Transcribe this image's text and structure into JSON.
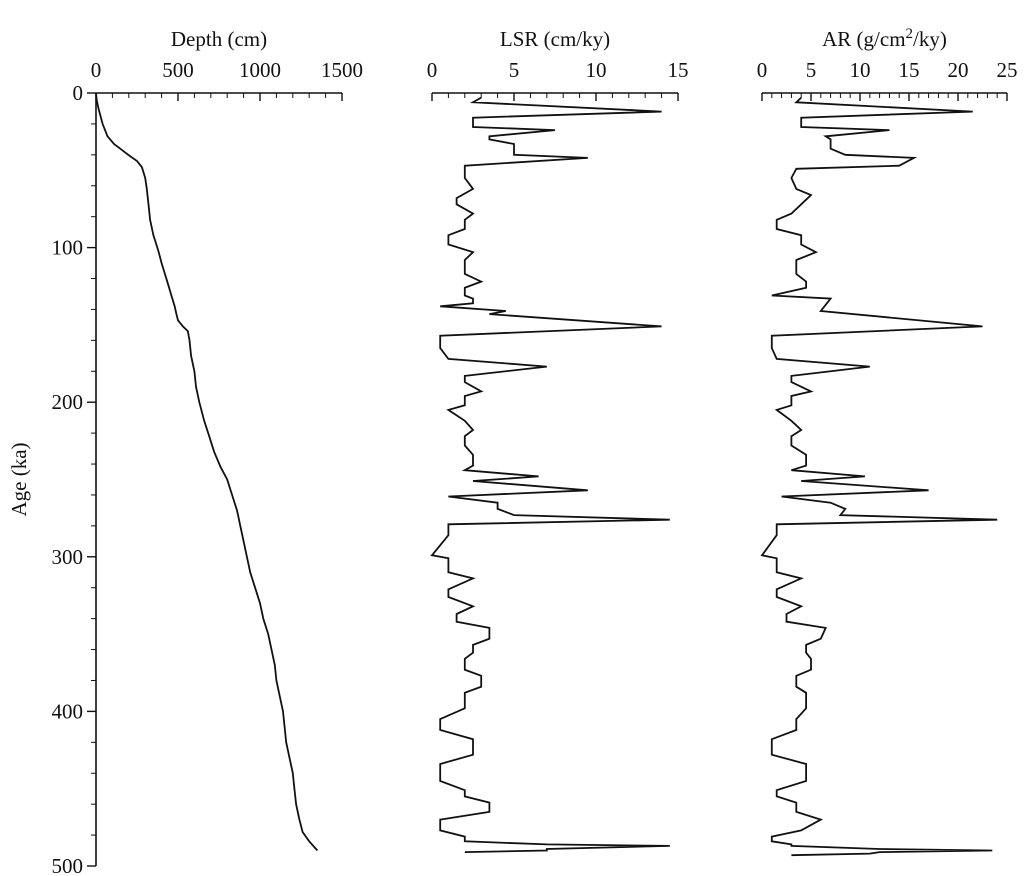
{
  "chart_data": [
    {
      "type": "line",
      "orientation": "vertical-depth-profile",
      "xlabel": "Depth (cm)",
      "ylabel": "Age (ka)",
      "xlim": [
        0,
        1500
      ],
      "ylim": [
        0,
        500
      ],
      "xticks": [
        "0",
        "500",
        "1000",
        "1500"
      ],
      "yticks": [
        "0",
        "100",
        "200",
        "300",
        "400",
        "500"
      ],
      "series": [
        {
          "x": [
            0,
            5,
            15,
            40,
            70,
            110,
            160,
            210,
            250,
            280,
            300,
            310,
            320,
            330,
            350,
            380,
            400,
            420,
            440,
            460,
            480,
            490,
            500,
            530,
            560,
            570,
            580,
            600,
            610,
            630,
            660,
            690,
            720,
            760,
            800,
            830,
            860,
            870,
            880,
            900,
            920,
            940,
            970,
            1000,
            1020,
            1050,
            1070,
            1090,
            1100,
            1120,
            1140,
            1150,
            1160,
            1180,
            1200,
            1210,
            1220,
            1240,
            1260,
            1300,
            1350
          ],
          "y": [
            0,
            5,
            10,
            20,
            28,
            33,
            37,
            41,
            44,
            48,
            55,
            62,
            72,
            82,
            92,
            102,
            110,
            117,
            124,
            131,
            138,
            143,
            147,
            151,
            154,
            160,
            170,
            180,
            190,
            200,
            212,
            222,
            232,
            242,
            250,
            260,
            270,
            275,
            280,
            290,
            300,
            310,
            320,
            330,
            340,
            350,
            360,
            370,
            380,
            390,
            400,
            410,
            420,
            430,
            440,
            450,
            460,
            470,
            478,
            484,
            490
          ]
        }
      ]
    },
    {
      "type": "line",
      "orientation": "vertical-step-profile",
      "xlabel": "LSR (cm/ky)",
      "xlim": [
        0,
        15
      ],
      "xticks": [
        "0",
        "5",
        "10",
        "15"
      ],
      "ylim": [
        0,
        500
      ],
      "series": [
        {
          "x": [
            3.0,
            2.5,
            14.0,
            2.5,
            2.5,
            7.5,
            3.5,
            3.5,
            5.0,
            5.0,
            9.5,
            2.0,
            2.0,
            2.5,
            1.5,
            1.5,
            2.5,
            2.0,
            2.0,
            1.0,
            1.0,
            2.5,
            2.0,
            2.0,
            3.0,
            2.0,
            2.0,
            2.5,
            2.5,
            0.5,
            4.5,
            3.5,
            14.0,
            0.5,
            0.5,
            1.0,
            7.0,
            2.0,
            2.0,
            3.0,
            2.0,
            2.0,
            1.0,
            2.0,
            2.5,
            2.0,
            2.0,
            2.5,
            2.5,
            2.0,
            6.5,
            2.5,
            9.5,
            1.0,
            4.0,
            4.0,
            5.0,
            14.5,
            1.0,
            1.0,
            0.0,
            1.0,
            1.0,
            2.5,
            1.0,
            1.0,
            2.5,
            1.5,
            1.5,
            3.5,
            3.5,
            2.5,
            2.5,
            2.0,
            2.0,
            3.0,
            3.0,
            2.0,
            2.0,
            0.5,
            0.5,
            2.5,
            2.5,
            0.5,
            0.5,
            2.0,
            2.0,
            3.5,
            3.5,
            0.5,
            0.5,
            2.0,
            2.0,
            7.0,
            14.5,
            7.0,
            7.0,
            2.0
          ],
          "y": [
            3,
            6,
            12,
            16,
            22,
            24,
            28,
            30,
            33,
            40,
            42,
            47,
            55,
            62,
            68,
            72,
            78,
            82,
            88,
            92,
            98,
            103,
            108,
            117,
            122,
            126,
            131,
            133,
            136,
            138,
            141,
            143,
            151,
            157,
            165,
            172,
            177,
            183,
            187,
            193,
            196,
            202,
            205,
            212,
            218,
            222,
            228,
            234,
            241,
            244,
            248,
            251,
            257,
            261,
            265,
            269,
            273,
            276,
            279,
            286,
            299,
            301,
            310,
            314,
            321,
            326,
            332,
            337,
            342,
            346,
            353,
            357,
            362,
            366,
            373,
            377,
            384,
            388,
            398,
            405,
            412,
            418,
            428,
            434,
            445,
            451,
            455,
            459,
            465,
            470,
            477,
            481,
            484,
            486,
            487,
            489,
            490,
            491
          ]
        }
      ]
    },
    {
      "type": "line",
      "orientation": "vertical-step-profile",
      "xlabel": "AR (g/cm²/ky)",
      "xlim": [
        0,
        25
      ],
      "xticks": [
        "0",
        "5",
        "10",
        "15",
        "20",
        "25"
      ],
      "ylim": [
        0,
        500
      ],
      "series": [
        {
          "x": [
            4.0,
            3.5,
            21.5,
            4.0,
            4.0,
            13.0,
            6.5,
            7.0,
            7.0,
            8.5,
            15.5,
            14.0,
            3.5,
            3.0,
            3.5,
            5.0,
            4.0,
            3.0,
            1.5,
            1.5,
            4.0,
            4.0,
            5.5,
            3.5,
            3.5,
            4.5,
            4.5,
            1.0,
            7.0,
            6.0,
            22.5,
            1.0,
            1.0,
            1.5,
            11.0,
            3.0,
            3.0,
            5.0,
            3.0,
            3.0,
            1.5,
            3.0,
            4.0,
            3.0,
            3.0,
            4.5,
            4.5,
            3.0,
            10.5,
            4.0,
            17.0,
            2.0,
            7.0,
            8.5,
            8.0,
            24.0,
            1.5,
            1.5,
            0.0,
            1.5,
            1.5,
            4.0,
            1.5,
            1.5,
            4.0,
            2.5,
            2.5,
            6.5,
            6.0,
            4.5,
            4.5,
            5.0,
            5.0,
            3.5,
            3.5,
            4.5,
            4.5,
            3.5,
            3.5,
            1.0,
            1.0,
            4.5,
            4.5,
            1.5,
            1.5,
            3.5,
            3.5,
            6.0,
            4.0,
            1.0,
            1.0,
            3.0,
            3.0,
            12.0,
            23.5,
            12.0,
            11.0,
            3.0
          ],
          "y": [
            3,
            6,
            12,
            16,
            22,
            24,
            28,
            30,
            36,
            40,
            42,
            47,
            49,
            55,
            62,
            66,
            72,
            78,
            82,
            88,
            92,
            98,
            103,
            108,
            117,
            122,
            126,
            131,
            133,
            141,
            151,
            157,
            165,
            172,
            177,
            183,
            187,
            193,
            196,
            202,
            205,
            212,
            218,
            222,
            228,
            234,
            241,
            244,
            248,
            251,
            257,
            261,
            265,
            269,
            273,
            276,
            279,
            286,
            299,
            301,
            310,
            314,
            321,
            326,
            332,
            337,
            342,
            346,
            353,
            357,
            362,
            366,
            373,
            377,
            384,
            388,
            398,
            405,
            412,
            418,
            428,
            434,
            445,
            451,
            455,
            459,
            465,
            470,
            477,
            481,
            484,
            486,
            487,
            489,
            490,
            491,
            492,
            493
          ]
        }
      ]
    }
  ]
}
